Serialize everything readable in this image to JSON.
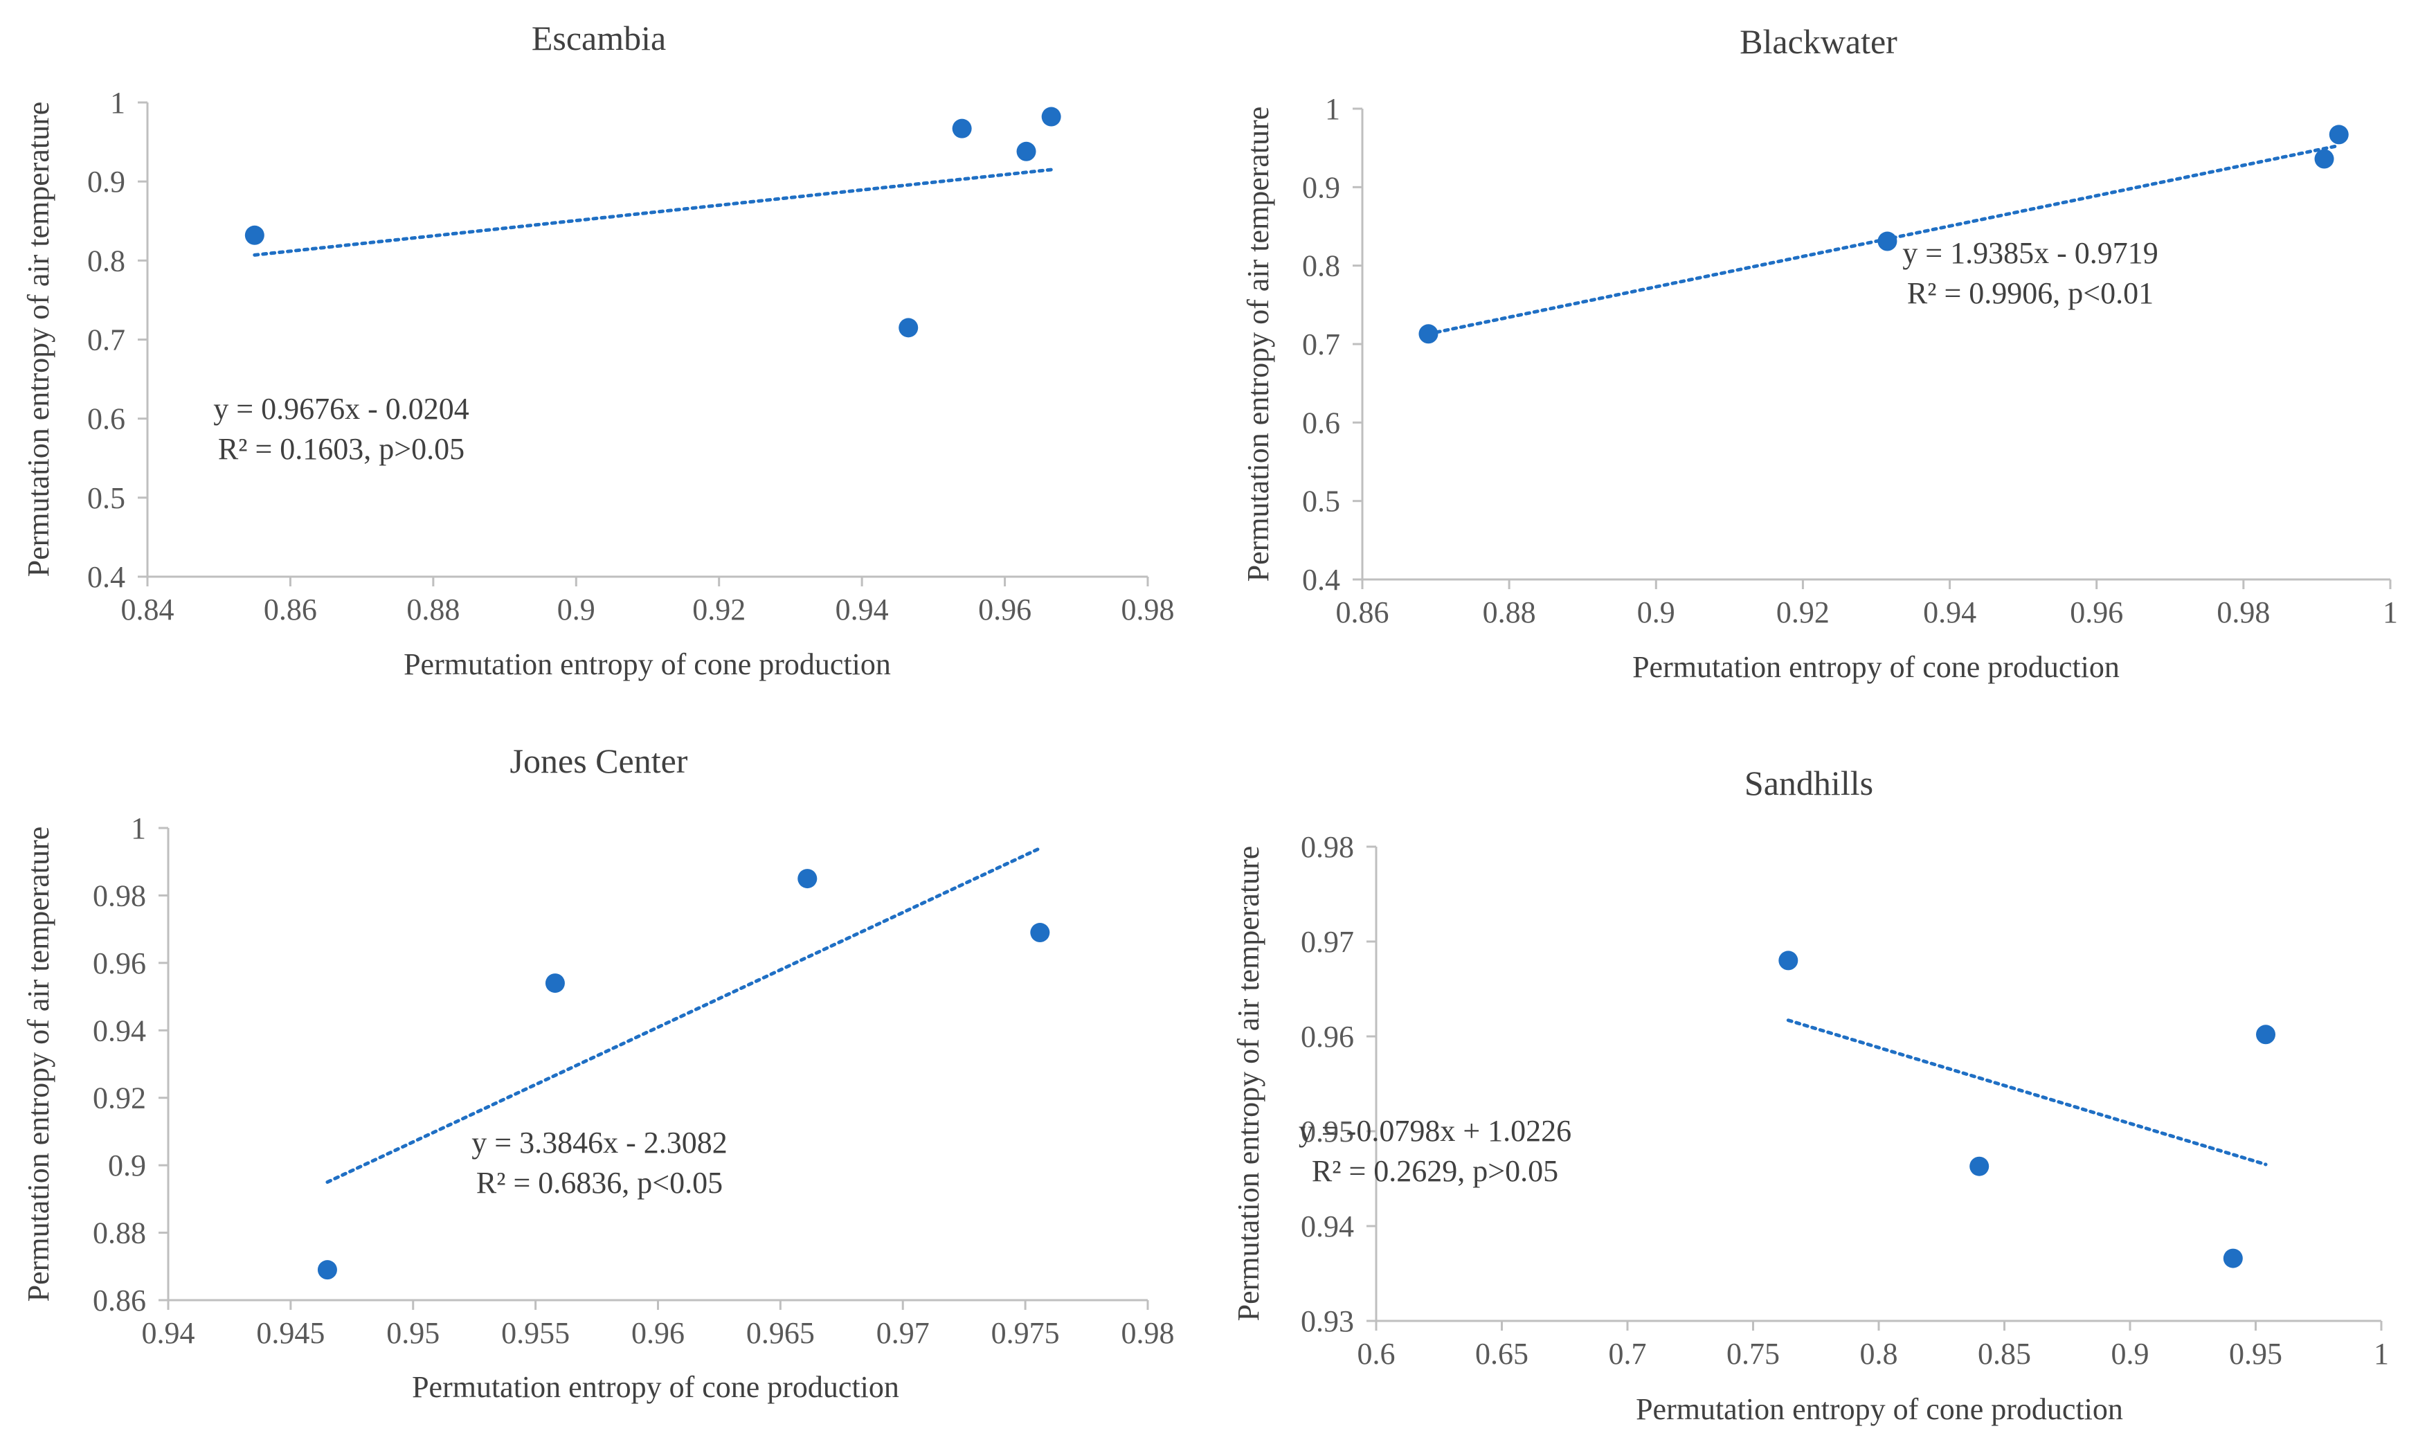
{
  "charts": [
    {
      "type": "scatter",
      "title": "Escambia",
      "xlabel": "Permutation entropy  of cone production",
      "ylabel": "Permutation entropy of air temperature",
      "xlim": [
        0.84,
        0.98
      ],
      "ylim": [
        0.4,
        1.0
      ],
      "xticks": [
        "0.84",
        "0.86",
        "0.88",
        "0.9",
        "0.92",
        "0.94",
        "0.96",
        "0.98"
      ],
      "yticks": [
        "0.4",
        "0.5",
        "0.6",
        "0.7",
        "0.8",
        "0.9",
        "1"
      ],
      "points": [
        {
          "x": 0.855,
          "y": 0.832
        },
        {
          "x": 0.9465,
          "y": 0.715
        },
        {
          "x": 0.954,
          "y": 0.967
        },
        {
          "x": 0.963,
          "y": 0.938
        },
        {
          "x": 0.9665,
          "y": 0.982
        }
      ],
      "trendline": {
        "x": [
          0.855,
          0.9665
        ],
        "y": [
          0.807,
          0.915
        ]
      },
      "equation": "y = 0.9676x - 0.0204",
      "r2_text": "R² = 0.1603, p>0.05",
      "point_color": "#1F6FC4"
    },
    {
      "type": "scatter",
      "title": "Blackwater",
      "xlabel": "Permutation entropy  of cone production",
      "ylabel": "Permutation entropy of air temperature",
      "xlim": [
        0.86,
        1.0
      ],
      "ylim": [
        0.4,
        1.0
      ],
      "xticks": [
        "0.86",
        "0.88",
        "0.9",
        "0.92",
        "0.94",
        "0.96",
        "0.98",
        "1"
      ],
      "yticks": [
        "0.4",
        "0.5",
        "0.6",
        "0.7",
        "0.8",
        "0.9",
        "1"
      ],
      "points": [
        {
          "x": 0.869,
          "y": 0.713
        },
        {
          "x": 0.9315,
          "y": 0.831
        },
        {
          "x": 0.991,
          "y": 0.936
        },
        {
          "x": 0.993,
          "y": 0.967
        }
      ],
      "trendline": {
        "x": [
          0.869,
          0.993
        ],
        "y": [
          0.713,
          0.953
        ]
      },
      "equation": "y = 1.9385x - 0.9719",
      "r2_text": "R² = 0.9906, p<0.01",
      "point_color": "#1F6FC4"
    },
    {
      "type": "scatter",
      "title": "Jones Center",
      "xlabel": "Permutation entropy  of cone production",
      "ylabel": "Permutation entropy of air temperature",
      "xlim": [
        0.94,
        0.98
      ],
      "ylim": [
        0.86,
        1.0
      ],
      "xticks": [
        "0.94",
        "0.945",
        "0.95",
        "0.955",
        "0.96",
        "0.965",
        "0.97",
        "0.975",
        "0.98"
      ],
      "yticks": [
        "0.86",
        "0.88",
        "0.9",
        "0.92",
        "0.94",
        "0.96",
        "0.98",
        "1"
      ],
      "points": [
        {
          "x": 0.9465,
          "y": 0.869
        },
        {
          "x": 0.9558,
          "y": 0.954
        },
        {
          "x": 0.9661,
          "y": 0.985
        },
        {
          "x": 0.9756,
          "y": 0.969
        }
      ],
      "trendline": {
        "x": [
          0.9465,
          0.9756
        ],
        "y": [
          0.895,
          0.994
        ]
      },
      "equation": "y = 3.3846x - 2.3082",
      "r2_text": "R² = 0.6836, p<0.05",
      "point_color": "#1F6FC4"
    },
    {
      "type": "scatter",
      "title": "Sandhills",
      "xlabel": "Permutation entropy  of cone production",
      "ylabel": "Permutation entropy of air temperature",
      "xlim": [
        0.6,
        1.0
      ],
      "ylim": [
        0.93,
        0.98
      ],
      "xticks": [
        "0.6",
        "0.65",
        "0.7",
        "0.75",
        "0.8",
        "0.85",
        "0.9",
        "0.95",
        "1"
      ],
      "yticks": [
        "0.93",
        "0.94",
        "0.95",
        "0.96",
        "0.97",
        "0.98"
      ],
      "points": [
        {
          "x": 0.764,
          "y": 0.968
        },
        {
          "x": 0.84,
          "y": 0.9463
        },
        {
          "x": 0.941,
          "y": 0.9366
        },
        {
          "x": 0.954,
          "y": 0.9602
        }
      ],
      "trendline": {
        "x": [
          0.764,
          0.954
        ],
        "y": [
          0.9617,
          0.9465
        ]
      },
      "equation": "y = -0.0798x + 1.0226",
      "r2_text": "R² = 0.2629, p>0.05",
      "point_color": "#1F6FC4"
    }
  ],
  "chart_data": [
    {
      "type": "scatter",
      "title": "Escambia",
      "x": [
        0.855,
        0.9465,
        0.954,
        0.963,
        0.9665
      ],
      "y": [
        0.832,
        0.715,
        0.967,
        0.938,
        0.982
      ],
      "xlabel": "Permutation entropy  of cone production",
      "ylabel": "Permutation entropy of air temperature",
      "xlim": [
        0.84,
        0.98
      ],
      "ylim": [
        0.4,
        1.0
      ],
      "annotations": [
        "y = 0.9676x - 0.0204",
        "R² = 0.1603, p>0.05"
      ]
    },
    {
      "type": "scatter",
      "title": "Blackwater",
      "x": [
        0.869,
        0.9315,
        0.991,
        0.993
      ],
      "y": [
        0.713,
        0.831,
        0.936,
        0.967
      ],
      "xlabel": "Permutation entropy  of cone production",
      "ylabel": "Permutation entropy of air temperature",
      "xlim": [
        0.86,
        1.0
      ],
      "ylim": [
        0.4,
        1.0
      ],
      "annotations": [
        "y = 1.9385x - 0.9719",
        "R² = 0.9906, p<0.01"
      ]
    },
    {
      "type": "scatter",
      "title": "Jones Center",
      "x": [
        0.9465,
        0.9558,
        0.9661,
        0.9756
      ],
      "y": [
        0.869,
        0.954,
        0.985,
        0.969
      ],
      "xlabel": "Permutation entropy  of cone production",
      "ylabel": "Permutation entropy of air temperature",
      "xlim": [
        0.94,
        0.98
      ],
      "ylim": [
        0.86,
        1.0
      ],
      "annotations": [
        "y = 3.3846x - 2.3082",
        "R² = 0.6836, p<0.05"
      ]
    },
    {
      "type": "scatter",
      "title": "Sandhills",
      "x": [
        0.764,
        0.84,
        0.941,
        0.954
      ],
      "y": [
        0.968,
        0.9463,
        0.9366,
        0.9602
      ],
      "xlabel": "Permutation entropy  of cone production",
      "ylabel": "Permutation entropy of air temperature",
      "xlim": [
        0.6,
        1.0
      ],
      "ylim": [
        0.93,
        0.98
      ],
      "annotations": [
        "y = -0.0798x + 1.0226",
        "R² = 0.2629, p>0.05"
      ]
    }
  ]
}
